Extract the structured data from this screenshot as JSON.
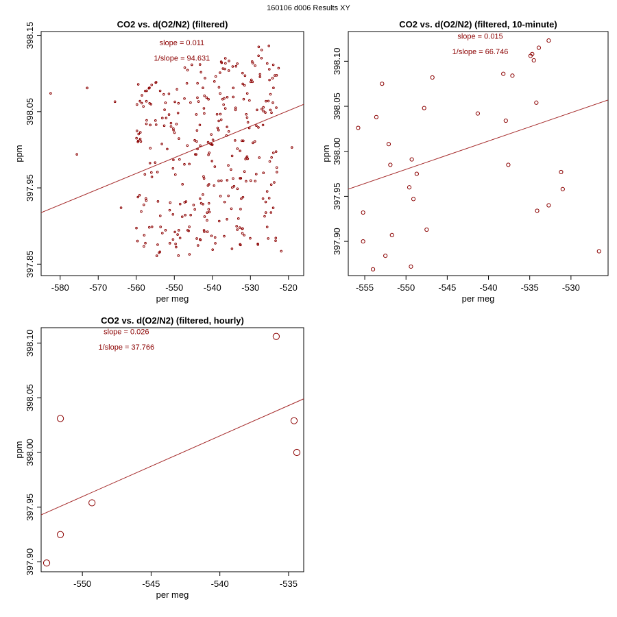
{
  "page": {
    "title": "160106   d006   Results XY"
  },
  "colors": {
    "series": "#8b0000",
    "fit": "#a52a2a",
    "axis": "#000000"
  },
  "chart_data": [
    {
      "type": "scatter",
      "title": "CO2 vs. d(O2/N2) (filtered)",
      "xlabel": "per meg",
      "ylabel": "ppm",
      "xlim": [
        -585,
        -516
      ],
      "ylim": [
        397.835,
        398.155
      ],
      "xticks": [
        -580,
        -570,
        -560,
        -550,
        -540,
        -530,
        -520
      ],
      "yticks": [
        397.85,
        397.95,
        398.05,
        398.15
      ],
      "xtick_labels": [
        "-580",
        "-570",
        "-560",
        "-550",
        "-540",
        "-530",
        "-520"
      ],
      "ytick_labels": [
        "397.85",
        "397.95",
        "398.05",
        "398.15"
      ],
      "annotations": [
        "slope = 0.011",
        "1/slope = 94.631"
      ],
      "annotation_x": -548,
      "annotation_y": [
        398.137,
        398.117
      ],
      "fit_line": {
        "x": [
          -585,
          -516
        ],
        "y": [
          397.9175,
          398.0595
        ]
      },
      "marker_radius": 1.3,
      "points_seed": 12345,
      "points_n": 330,
      "points_range": {
        "x": [
          -560,
          -523
        ],
        "y": [
          397.855,
          398.145
        ]
      },
      "points": [
        [
          -582.5,
          398.074
        ],
        [
          -575.6,
          397.994
        ],
        [
          -572.9,
          398.081
        ],
        [
          -565.6,
          398.063
        ],
        [
          -564,
          397.924
        ],
        [
          -519.1,
          398.003
        ],
        [
          -521.9,
          397.867
        ],
        [
          -522.6,
          398.107
        ]
      ]
    },
    {
      "type": "scatter",
      "title": "CO2 vs. d(O2/N2) (filtered, 10-minute)",
      "xlabel": "per meg",
      "ylabel": "ppm",
      "xlim": [
        -557,
        -525.5
      ],
      "ylim": [
        397.862,
        398.133
      ],
      "xticks": [
        -555,
        -550,
        -545,
        -540,
        -535,
        -530
      ],
      "yticks": [
        397.9,
        397.95,
        398.0,
        398.05,
        398.1
      ],
      "xtick_labels": [
        "-555",
        "-550",
        "-545",
        "-540",
        "-535",
        "-530"
      ],
      "ytick_labels": [
        "397.90",
        "397.95",
        "398.00",
        "398.05",
        "398.10"
      ],
      "annotations": [
        "slope = 0.015",
        "1/slope = 66.746"
      ],
      "annotation_x": -541,
      "annotation_y": [
        398.125,
        398.108
      ],
      "fit_line": {
        "x": [
          -557,
          -525.5
        ],
        "y": [
          397.958,
          398.057
        ]
      },
      "marker_radius": 2.6,
      "points": [
        [
          -555.8,
          398.026
        ],
        [
          -555.2,
          397.932
        ],
        [
          -555.2,
          397.9
        ],
        [
          -554.0,
          397.869
        ],
        [
          -553.6,
          398.038
        ],
        [
          -552.9,
          398.075
        ],
        [
          -552.5,
          397.884
        ],
        [
          -552.1,
          398.008
        ],
        [
          -551.9,
          397.985
        ],
        [
          -551.7,
          397.907
        ],
        [
          -549.4,
          397.872
        ],
        [
          -549.6,
          397.96
        ],
        [
          -549.3,
          397.991
        ],
        [
          -549.1,
          397.947
        ],
        [
          -548.7,
          397.975
        ],
        [
          -547.8,
          398.048
        ],
        [
          -547.5,
          397.913
        ],
        [
          -546.8,
          398.082
        ],
        [
          -541.3,
          398.042
        ],
        [
          -538.2,
          398.086
        ],
        [
          -537.9,
          398.034
        ],
        [
          -537.6,
          397.985
        ],
        [
          -537.1,
          398.084
        ],
        [
          -534.9,
          398.106
        ],
        [
          -534.7,
          398.108
        ],
        [
          -534.5,
          398.101
        ],
        [
          -534.2,
          398.054
        ],
        [
          -534.1,
          397.934
        ],
        [
          -533.9,
          398.115
        ],
        [
          -532.7,
          398.123
        ],
        [
          -532.7,
          397.94
        ],
        [
          -531.2,
          397.977
        ],
        [
          -531.0,
          397.958
        ],
        [
          -526.6,
          397.889
        ]
      ]
    },
    {
      "type": "scatter",
      "title": "CO2 vs. d(O2/N2) (filtered, hourly)",
      "xlabel": "per meg",
      "ylabel": "ppm",
      "xlim": [
        -553.0,
        -533.9
      ],
      "ylim": [
        397.891,
        398.114
      ],
      "xticks": [
        -550,
        -545,
        -540,
        -535
      ],
      "yticks": [
        397.9,
        397.95,
        398.0,
        398.05,
        398.1
      ],
      "xtick_labels": [
        "-550",
        "-545",
        "-540",
        "-535"
      ],
      "ytick_labels": [
        "397.90",
        "397.95",
        "398.00",
        "398.05",
        "398.10"
      ],
      "annotations": [
        "slope = 0.026",
        "1/slope = 37.766"
      ],
      "annotation_x": -546.8,
      "annotation_y": [
        398.108,
        398.094
      ],
      "fit_line": {
        "x": [
          -553.0,
          -533.9
        ],
        "y": [
          397.943,
          398.049
        ]
      },
      "marker_radius": 4.6,
      "points": [
        [
          -552.6,
          397.899
        ],
        [
          -551.6,
          397.925
        ],
        [
          -551.6,
          398.031
        ],
        [
          -549.3,
          397.954
        ],
        [
          -535.9,
          398.106
        ],
        [
          -534.6,
          398.029
        ],
        [
          -534.4,
          398.0
        ]
      ]
    }
  ]
}
